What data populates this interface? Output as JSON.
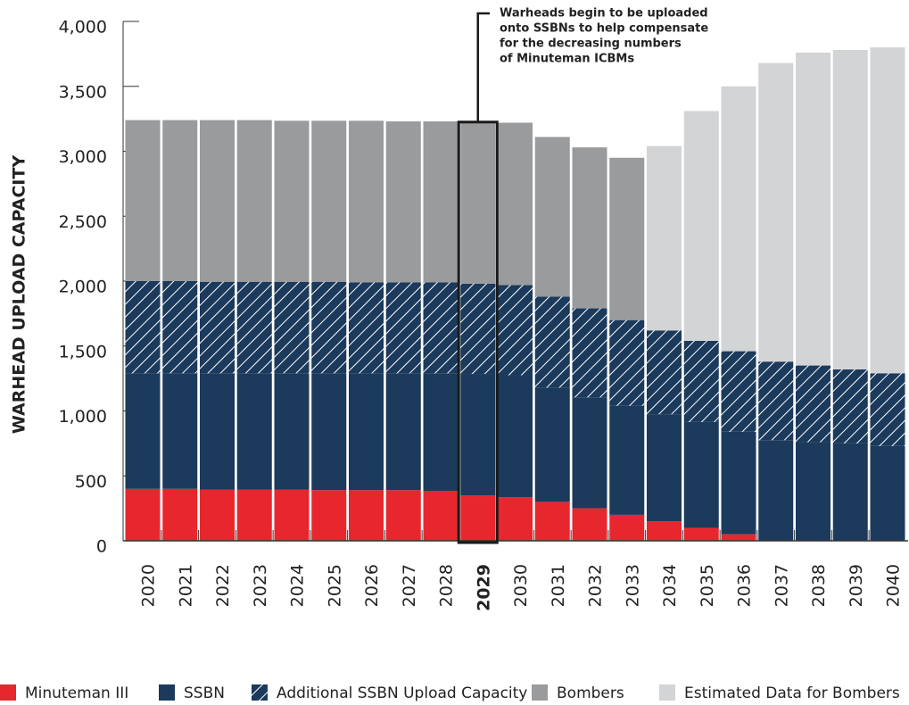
{
  "chart_data": {
    "type": "stacked-bar",
    "ylabel": "WARHEAD UPLOAD CAPACITY",
    "annotation": [
      "Warheads begin to be uploaded",
      "onto SSBNs to help compensate",
      "for the decreasing numbers",
      "of Minuteman ICBMs"
    ],
    "highlight": "2029",
    "categories": [
      "2020",
      "2021",
      "2022",
      "2023",
      "2024",
      "2025",
      "2026",
      "2027",
      "2028",
      "2029",
      "2030",
      "2031",
      "2032",
      "2033",
      "2034",
      "2035",
      "2036",
      "2037",
      "2038",
      "2039",
      "2040"
    ],
    "series": [
      {
        "name": "Minuteman III",
        "color": "#e8262d",
        "values": [
          400,
          400,
          395,
          395,
          395,
          390,
          390,
          390,
          385,
          350,
          335,
          300,
          250,
          200,
          150,
          100,
          50,
          0,
          0,
          0,
          0
        ]
      },
      {
        "name": "SSBN",
        "color": "#1b3a5c",
        "values": [
          890,
          890,
          895,
          895,
          895,
          900,
          900,
          900,
          905,
          935,
          940,
          880,
          855,
          840,
          825,
          815,
          790,
          775,
          760,
          750,
          730
        ]
      },
      {
        "name": "Additional SSBN Upload Capacity",
        "color": "#1b3a5c",
        "hatch": true,
        "values": [
          710,
          710,
          705,
          705,
          705,
          705,
          700,
          700,
          700,
          695,
          695,
          700,
          685,
          660,
          645,
          625,
          620,
          605,
          590,
          570,
          560
        ]
      },
      {
        "name": "Bombers",
        "color": "#9a9b9d",
        "values": [
          1240,
          1240,
          1245,
          1245,
          1240,
          1240,
          1245,
          1240,
          1240,
          1245,
          1250,
          1230,
          1240,
          1250,
          null,
          null,
          null,
          null,
          null,
          null,
          null
        ]
      },
      {
        "name": "Estimated Data for Bombers",
        "color": "#d3d4d6",
        "values": [
          null,
          null,
          null,
          null,
          null,
          null,
          null,
          null,
          null,
          null,
          null,
          null,
          null,
          null,
          1420,
          1770,
          2040,
          2300,
          2410,
          2460,
          2510
        ]
      }
    ],
    "ylim": [
      0,
      4000
    ],
    "yticks": [
      {
        "value": 0,
        "label": "0"
      },
      {
        "value": 500,
        "label": "500"
      },
      {
        "value": 1000,
        "label": "1,000"
      },
      {
        "value": 1500,
        "label": "1,500"
      },
      {
        "value": 2000,
        "label": "2,000"
      },
      {
        "value": 2500,
        "label": "2,500"
      },
      {
        "value": 3000,
        "label": "3,000"
      },
      {
        "value": 3500,
        "label": "3,500"
      },
      {
        "value": 4000,
        "label": "4,000"
      }
    ]
  }
}
